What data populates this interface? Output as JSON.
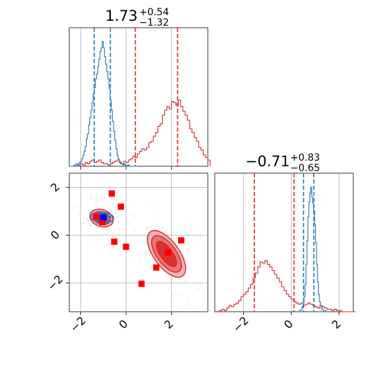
{
  "colors": {
    "red": "#d62728",
    "blue": "#1f77b4",
    "grid": "#b0b0b0"
  },
  "chart_data": [
    {
      "type": "histogram",
      "panel": "top-left",
      "title": {
        "main": "1.73",
        "sup": "+0.54",
        "sub": "−1.32"
      },
      "xlim": [
        -2.5,
        3.6
      ],
      "xticks": [
        -2,
        0,
        2
      ],
      "grid": true,
      "series": [
        {
          "color": "red",
          "dashed_lines": [
            0.41,
            2.27
          ],
          "bin_start": -2.5,
          "bin_width": 0.1,
          "values": [
            0,
            0,
            0,
            0,
            0.01,
            0.02,
            0.01,
            0.03,
            0.02,
            0.04,
            0.05,
            0.03,
            0.04,
            0.05,
            0.03,
            0.02,
            0.02,
            0.01,
            0.02,
            0.03,
            0.04,
            0.05,
            0.03,
            0.02,
            0.04,
            0.03,
            0.05,
            0.06,
            0.08,
            0.07,
            0.1,
            0.12,
            0.14,
            0.13,
            0.15,
            0.19,
            0.2,
            0.24,
            0.27,
            0.32,
            0.34,
            0.41,
            0.45,
            0.48,
            0.46,
            0.52,
            0.51,
            0.49,
            0.53,
            0.48,
            0.44,
            0.41,
            0.37,
            0.3,
            0.27,
            0.23,
            0.2,
            0.15,
            0.13,
            0.09,
            0.07,
            0.05
          ]
        },
        {
          "color": "blue",
          "dashed_lines": [
            -1.4,
            -0.69
          ],
          "bin_start": -2.5,
          "bin_width": 0.05,
          "values": [
            0,
            0,
            0,
            0,
            0.01,
            0,
            0.02,
            0.01,
            0.02,
            0.03,
            0.04,
            0.06,
            0.09,
            0.12,
            0.16,
            0.22,
            0.26,
            0.33,
            0.39,
            0.45,
            0.51,
            0.58,
            0.63,
            0.7,
            0.74,
            0.8,
            0.86,
            0.92,
            0.95,
            1.0,
            0.95,
            0.88,
            0.82,
            0.76,
            0.7,
            0.62,
            0.53,
            0.45,
            0.36,
            0.28,
            0.21,
            0.14,
            0.09,
            0.06,
            0.04,
            0.02,
            0.02,
            0.01,
            0.02,
            0.01,
            0.01,
            0,
            0.01,
            0,
            0,
            0,
            0,
            0,
            0,
            0
          ]
        }
      ]
    },
    {
      "type": "contour-scatter",
      "panel": "bottom-left",
      "xlim": [
        -2.5,
        3.6
      ],
      "ylim": [
        -3.2,
        2.6
      ],
      "xticks": [
        -2,
        0,
        2
      ],
      "yticks": [
        -2,
        0,
        2
      ],
      "grid": true,
      "red_mode_a": {
        "x": 1.78,
        "y": -0.78,
        "levels": [
          {
            "rx": 0.49,
            "ry": 1.13,
            "angle": 36
          },
          {
            "rx": 0.78,
            "ry": 1.63,
            "angle": 36
          },
          {
            "rx": 1.02,
            "ry": 2.08,
            "angle": 36
          }
        ]
      },
      "red_mode_b": {
        "x": -1.08,
        "y": 0.72,
        "levels": [
          {
            "rx": 0.46,
            "ry": 0.31,
            "angle": -20
          },
          {
            "rx": 0.72,
            "ry": 0.46,
            "angle": -20
          },
          {
            "rx": 0.96,
            "ry": 0.64,
            "angle": -20
          }
        ]
      },
      "blue_mode": {
        "x": -1.05,
        "y": 0.75,
        "levels": [
          {
            "rx": 0.26,
            "ry": 0.11,
            "angle": -5
          },
          {
            "rx": 0.45,
            "ry": 0.2,
            "angle": -5
          },
          {
            "rx": 0.68,
            "ry": 0.3,
            "angle": -5
          },
          {
            "rx": 0.92,
            "ry": 0.4,
            "angle": -5
          }
        ]
      },
      "red_markers": [
        {
          "x": -1.3,
          "y": 0.78
        },
        {
          "x": -1.0,
          "y": 0.72
        },
        {
          "x": -1.05,
          "y": 0.55
        },
        {
          "x": -0.63,
          "y": 1.75
        },
        {
          "x": -0.23,
          "y": 1.2
        },
        {
          "x": -0.52,
          "y": -0.27
        },
        {
          "x": 0.0,
          "y": -0.48
        },
        {
          "x": 0.68,
          "y": -2.03
        },
        {
          "x": 1.33,
          "y": -1.35
        },
        {
          "x": 1.85,
          "y": -0.72
        },
        {
          "x": 2.43,
          "y": -0.21
        }
      ],
      "blue_marker": {
        "x": -1.0,
        "y": 0.75
      }
    },
    {
      "type": "histogram",
      "panel": "bottom-right",
      "title": {
        "main": "−0.71",
        "sup": "+0.83",
        "sub": "−0.65"
      },
      "xlim": [
        -3.2,
        2.6
      ],
      "xticks": [
        -2,
        0,
        2
      ],
      "grid": true,
      "series": [
        {
          "color": "red",
          "dashed_lines": [
            -1.54,
            0.12
          ],
          "bin_start": -3.0,
          "bin_width": 0.1,
          "values": [
            0.01,
            0.02,
            0.01,
            0.03,
            0.05,
            0.04,
            0.06,
            0.07,
            0.09,
            0.12,
            0.14,
            0.16,
            0.19,
            0.22,
            0.27,
            0.31,
            0.36,
            0.4,
            0.39,
            0.41,
            0.38,
            0.36,
            0.33,
            0.3,
            0.27,
            0.24,
            0.2,
            0.17,
            0.14,
            0.12,
            0.1,
            0.08,
            0.07,
            0.06,
            0.07,
            0.05,
            0.06,
            0.07,
            0.06,
            0.05,
            0.04,
            0.03,
            0.05,
            0.04,
            0.03,
            0.02,
            0.02,
            0.01,
            0.02,
            0.01,
            0.01,
            0.0,
            0.0,
            0.0,
            0.0,
            0.0,
            0.0
          ]
        },
        {
          "color": "blue",
          "dashed_lines": [
            0.52,
            0.95
          ],
          "bin_start": 0.3,
          "bin_width": 0.04,
          "values": [
            0.0,
            0.01,
            0.01,
            0.02,
            0.04,
            0.07,
            0.12,
            0.22,
            0.38,
            0.57,
            0.76,
            0.88,
            0.95,
            1.0,
            0.92,
            0.87,
            0.81,
            0.7,
            0.55,
            0.38,
            0.24,
            0.14,
            0.08,
            0.05,
            0.03,
            0.02,
            0.01,
            0.01,
            0.01,
            0.0
          ]
        }
      ]
    }
  ]
}
